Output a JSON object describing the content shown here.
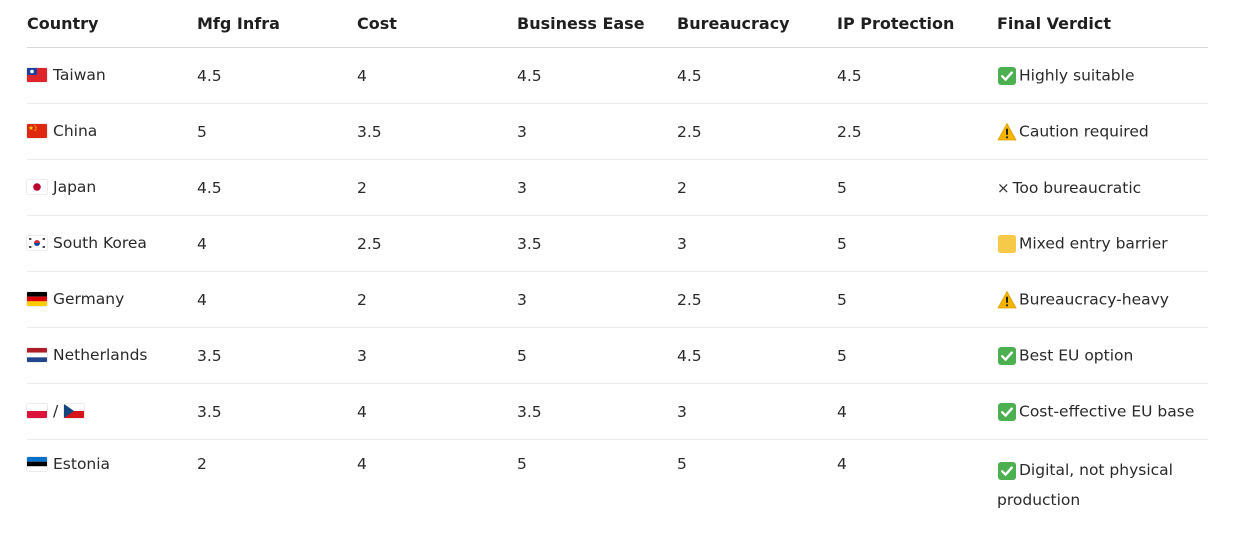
{
  "table": {
    "headers": [
      "Country",
      "Mfg Infra",
      "Cost",
      "Business Ease",
      "Bureaucracy",
      "IP Protection",
      "Final Verdict"
    ],
    "rows": [
      {
        "flag": "taiwan-flag",
        "country": "Taiwan",
        "mfg": "4.5",
        "cost": "4",
        "ease": "4.5",
        "bureaucracy": "4.5",
        "ip": "4.5",
        "verdict_icon": "check-mark-icon",
        "verdict": "Highly suitable"
      },
      {
        "flag": "china-flag",
        "country": "China",
        "mfg": "5",
        "cost": "3.5",
        "ease": "3",
        "bureaucracy": "2.5",
        "ip": "2.5",
        "verdict_icon": "warning-icon",
        "verdict": "Caution required"
      },
      {
        "flag": "japan-flag",
        "country": "Japan",
        "mfg": "4.5",
        "cost": "2",
        "ease": "3",
        "bureaucracy": "2",
        "ip": "5",
        "verdict_icon": "cross-icon",
        "verdict": "Too bureaucratic"
      },
      {
        "flag": "south-korea-flag",
        "country": "South Korea",
        "mfg": "4",
        "cost": "2.5",
        "ease": "3.5",
        "bureaucracy": "3",
        "ip": "5",
        "verdict_icon": "yellow-square-icon",
        "verdict": "Mixed entry barrier"
      },
      {
        "flag": "germany-flag",
        "country": "Germany",
        "mfg": "4",
        "cost": "2",
        "ease": "3",
        "bureaucracy": "2.5",
        "ip": "5",
        "verdict_icon": "warning-icon",
        "verdict": "Bureaucracy-heavy"
      },
      {
        "flag": "netherlands-flag",
        "country": "Netherlands",
        "mfg": "3.5",
        "cost": "3",
        "ease": "5",
        "bureaucracy": "4.5",
        "ip": "5",
        "verdict_icon": "check-mark-icon",
        "verdict": "Best EU option"
      },
      {
        "flag": "poland-czech-flags",
        "country": "/",
        "mfg": "3.5",
        "cost": "4",
        "ease": "3.5",
        "bureaucracy": "3",
        "ip": "4",
        "verdict_icon": "check-mark-icon",
        "verdict": "Cost-effective EU base"
      },
      {
        "flag": "estonia-flag",
        "country": "Estonia",
        "mfg": "2",
        "cost": "4",
        "ease": "5",
        "bureaucracy": "5",
        "ip": "4",
        "verdict_icon": "check-mark-icon",
        "verdict": "Digital, not physical production"
      }
    ]
  },
  "colors": {
    "check_green": "#4caf50",
    "warning_yellow": "#f5b400",
    "square_yellow": "#f7c948",
    "header_border": "#d9d9d9",
    "row_border": "#ececec"
  }
}
